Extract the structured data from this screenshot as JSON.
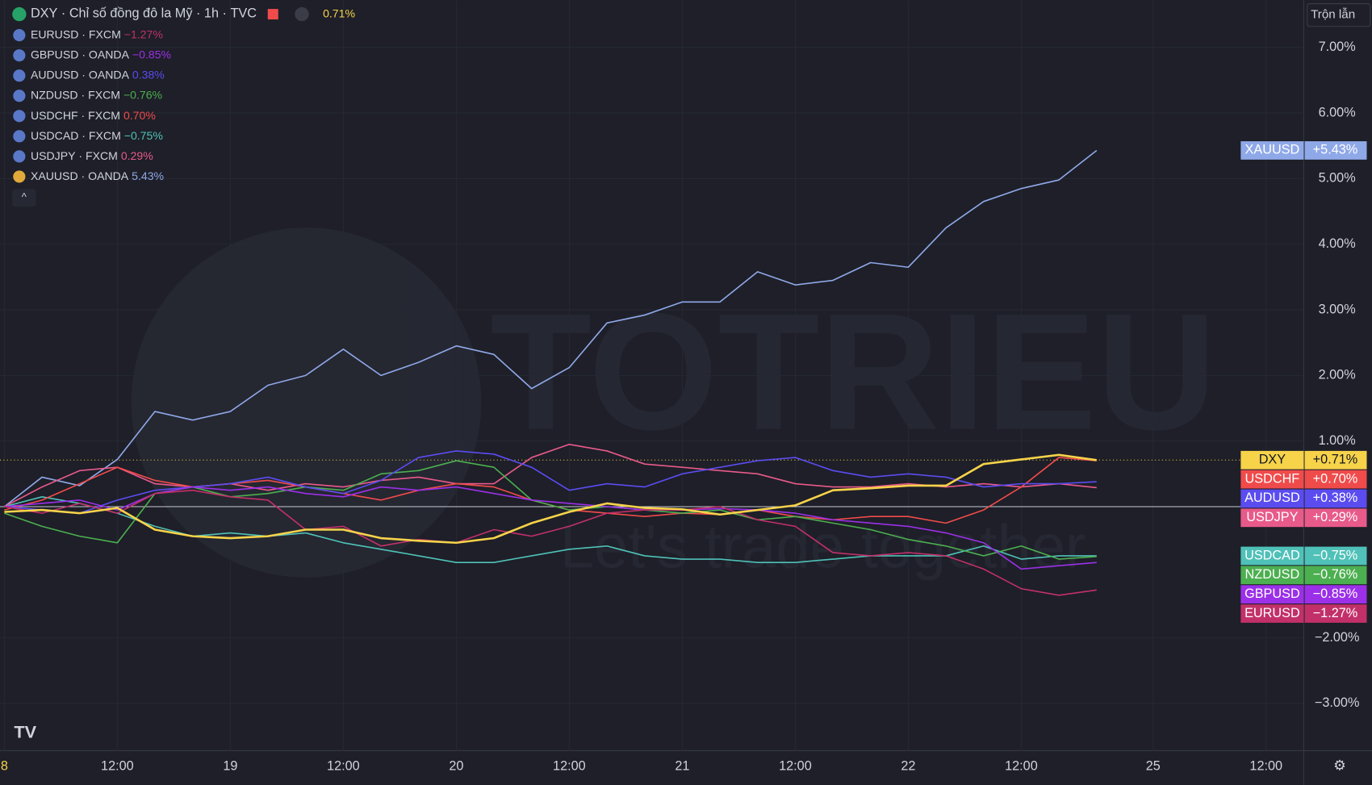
{
  "toolbar": {
    "button": "Trộn lẫn"
  },
  "watermark": {
    "brand": "TOTRIEU",
    "slogan": "Let's trade together"
  },
  "chart_data": {
    "type": "line",
    "x": [
      0,
      4,
      8,
      12,
      16,
      20,
      24,
      28,
      32,
      36,
      40,
      44,
      48,
      52,
      56,
      60,
      64,
      68,
      72,
      76,
      80,
      84,
      88,
      92,
      96,
      100,
      104,
      108,
      112,
      116
    ],
    "xlim": [
      -0.46,
      138
    ],
    "xticks": [
      {
        "value": 0,
        "label": "8"
      },
      {
        "value": 12,
        "label": "12:00"
      },
      {
        "value": 24,
        "label": "19"
      },
      {
        "value": 36,
        "label": "12:00"
      },
      {
        "value": 48,
        "label": "20"
      },
      {
        "value": 60,
        "label": "12:00"
      },
      {
        "value": 72,
        "label": "21"
      },
      {
        "value": 84,
        "label": "12:00"
      },
      {
        "value": 96,
        "label": "22"
      },
      {
        "value": 108,
        "label": "12:00"
      },
      {
        "value": 122,
        "label": "25"
      },
      {
        "value": 134,
        "label": "12:00"
      }
    ],
    "ylim": [
      -3.72,
      7.72
    ],
    "yticks": [
      {
        "value": 7,
        "label": "7.00%"
      },
      {
        "value": 6,
        "label": "6.00%"
      },
      {
        "value": 5,
        "label": "5.00%"
      },
      {
        "value": 4,
        "label": "4.00%"
      },
      {
        "value": 3,
        "label": "3.00%"
      },
      {
        "value": 2,
        "label": "2.00%"
      },
      {
        "value": 1,
        "label": "1.00%"
      },
      {
        "value": -2,
        "label": "−2.00%"
      },
      {
        "value": -3,
        "label": "−3.00%"
      }
    ],
    "grid": true,
    "series": [
      {
        "name": "DXY",
        "description": "Chỉ số đồng đô la Mỹ",
        "interval": "1h",
        "exchange": "TVC",
        "color": "#f7d34a",
        "legend_value": "0.71%",
        "tag_label": "+0.71%",
        "values": [
          -0.08,
          -0.05,
          -0.1,
          -0.02,
          -0.35,
          -0.45,
          -0.48,
          -0.45,
          -0.35,
          -0.35,
          -0.48,
          -0.52,
          -0.55,
          -0.48,
          -0.25,
          -0.08,
          0.05,
          -0.02,
          -0.04,
          -0.12,
          -0.05,
          0.02,
          0.25,
          0.28,
          0.32,
          0.32,
          0.65,
          0.72,
          0.79,
          0.71
        ]
      },
      {
        "name": "EURUSD",
        "exchange": "FXCM",
        "color": "#c2306a",
        "legend_value": "−1.27%",
        "tag_label": "−1.27%",
        "values": [
          0,
          -0.1,
          0.05,
          -0.1,
          0.2,
          0.25,
          0.15,
          0.1,
          -0.35,
          -0.3,
          -0.6,
          -0.5,
          -0.55,
          -0.35,
          -0.45,
          -0.3,
          -0.1,
          -0.05,
          -0.05,
          0,
          -0.2,
          -0.3,
          -0.7,
          -0.75,
          -0.7,
          -0.75,
          -0.95,
          -1.25,
          -1.35,
          -1.27
        ]
      },
      {
        "name": "GBPUSD",
        "exchange": "OANDA",
        "color": "#9b30e8",
        "legend_value": "−0.85%",
        "tag_label": "−0.85%",
        "values": [
          0,
          0.05,
          0.1,
          -0.05,
          0.2,
          0.3,
          0.25,
          0.3,
          0.2,
          0.15,
          0.3,
          0.25,
          0.3,
          0.2,
          0.1,
          0.05,
          0,
          -0.05,
          -0.05,
          -0.03,
          -0.05,
          -0.1,
          -0.2,
          -0.25,
          -0.3,
          -0.4,
          -0.55,
          -0.95,
          -0.9,
          -0.85
        ]
      },
      {
        "name": "AUDUSD",
        "exchange": "OANDA",
        "color": "#5b4cf0",
        "legend_value": "0.38%",
        "tag_label": "+0.38%",
        "values": [
          0,
          -0.05,
          -0.1,
          0.1,
          0.25,
          0.3,
          0.35,
          0.45,
          0.3,
          0.2,
          0.4,
          0.75,
          0.85,
          0.8,
          0.6,
          0.25,
          0.35,
          0.3,
          0.5,
          0.6,
          0.7,
          0.75,
          0.55,
          0.45,
          0.5,
          0.45,
          0.3,
          0.35,
          0.35,
          0.38
        ]
      },
      {
        "name": "NZDUSD",
        "exchange": "FXCM",
        "color": "#4caf50",
        "legend_value": "−0.76%",
        "tag_label": "−0.76%",
        "values": [
          -0.1,
          -0.3,
          -0.45,
          -0.55,
          0.2,
          0.3,
          0.15,
          0.2,
          0.3,
          0.25,
          0.5,
          0.55,
          0.7,
          0.6,
          0.1,
          -0.05,
          0,
          -0.05,
          -0.1,
          -0.05,
          -0.2,
          -0.15,
          -0.25,
          -0.35,
          -0.5,
          -0.6,
          -0.75,
          -0.6,
          -0.8,
          -0.76
        ]
      },
      {
        "name": "USDCHF",
        "exchange": "FXCM",
        "color": "#f04b4b",
        "legend_value": "0.70%",
        "tag_label": "+0.70%",
        "values": [
          -0.05,
          0.1,
          0.35,
          0.6,
          0.4,
          0.3,
          0.35,
          0.4,
          0.3,
          0.2,
          0.1,
          0.25,
          0.35,
          0.3,
          0.1,
          -0.05,
          -0.1,
          -0.15,
          -0.1,
          -0.12,
          -0.05,
          -0.15,
          -0.2,
          -0.15,
          -0.15,
          -0.25,
          -0.05,
          0.3,
          0.75,
          0.7
        ]
      },
      {
        "name": "USDCAD",
        "exchange": "FXCM",
        "color": "#4fc1b8",
        "legend_value": "−0.75%",
        "tag_label": "−0.75%",
        "values": [
          0,
          0.15,
          0.05,
          -0.1,
          -0.3,
          -0.45,
          -0.4,
          -0.45,
          -0.4,
          -0.55,
          -0.65,
          -0.75,
          -0.85,
          -0.85,
          -0.75,
          -0.65,
          -0.6,
          -0.75,
          -0.8,
          -0.8,
          -0.85,
          -0.85,
          -0.8,
          -0.75,
          -0.75,
          -0.75,
          -0.6,
          -0.8,
          -0.75,
          -0.75
        ]
      },
      {
        "name": "USDJPY",
        "exchange": "FXCM",
        "color": "#e85a8a",
        "legend_value": "0.29%",
        "tag_label": "+0.29%",
        "values": [
          0,
          0.3,
          0.55,
          0.6,
          0.35,
          0.3,
          0.35,
          0.25,
          0.35,
          0.3,
          0.4,
          0.45,
          0.35,
          0.35,
          0.75,
          0.95,
          0.85,
          0.65,
          0.6,
          0.55,
          0.5,
          0.35,
          0.3,
          0.3,
          0.35,
          0.3,
          0.35,
          0.3,
          0.35,
          0.29
        ]
      },
      {
        "name": "XAUUSD",
        "exchange": "OANDA",
        "color": "#8fa8e8",
        "legend_value": "5.43%",
        "tag_label": "+5.43%",
        "values": [
          0,
          0.45,
          0.32,
          0.72,
          1.45,
          1.32,
          1.45,
          1.85,
          2.0,
          2.4,
          2.0,
          2.2,
          2.45,
          2.32,
          1.8,
          2.12,
          2.8,
          2.92,
          3.12,
          3.12,
          3.58,
          3.38,
          3.45,
          3.72,
          3.65,
          4.25,
          4.65,
          4.85,
          4.98,
          5.43
        ]
      }
    ]
  }
}
